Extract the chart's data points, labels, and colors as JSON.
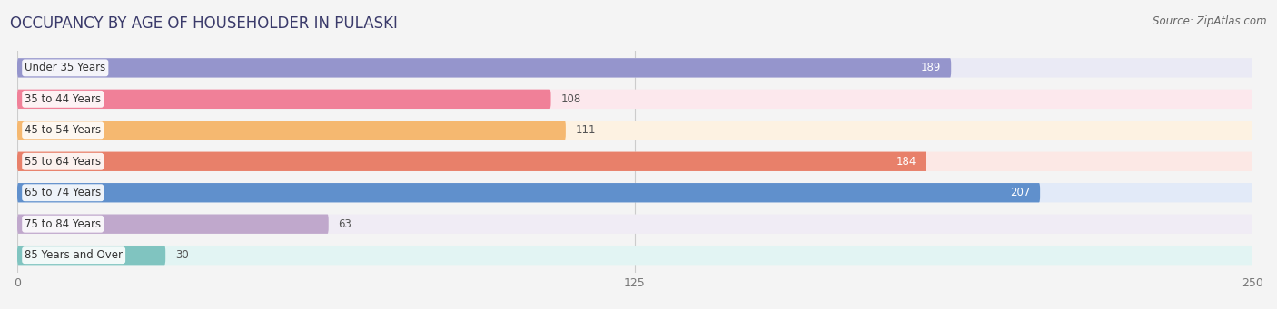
{
  "title": "OCCUPANCY BY AGE OF HOUSEHOLDER IN PULASKI",
  "source": "Source: ZipAtlas.com",
  "categories": [
    "Under 35 Years",
    "35 to 44 Years",
    "45 to 54 Years",
    "55 to 64 Years",
    "65 to 74 Years",
    "75 to 84 Years",
    "85 Years and Over"
  ],
  "values": [
    189,
    108,
    111,
    184,
    207,
    63,
    30
  ],
  "bar_colors": [
    "#9595cc",
    "#f08098",
    "#f5b870",
    "#e8806a",
    "#6090cc",
    "#c0a8cc",
    "#80c4c0"
  ],
  "bar_bg_colors": [
    "#eaeaf5",
    "#fce8ed",
    "#fdf2e2",
    "#fce8e5",
    "#e2eaf8",
    "#f0ecf5",
    "#e2f4f3"
  ],
  "xlim": [
    0,
    250
  ],
  "xticks": [
    0,
    125,
    250
  ],
  "bar_height": 0.62,
  "background_color": "#f4f4f4",
  "title_color": "#3a3a6a",
  "title_fontsize": 12,
  "source_fontsize": 8.5,
  "label_fontsize": 8.5,
  "value_fontsize": 8.5
}
